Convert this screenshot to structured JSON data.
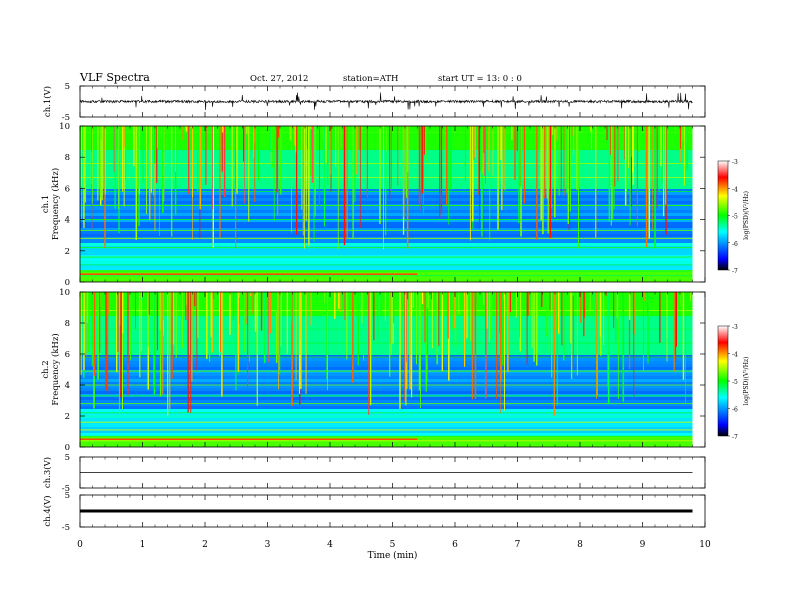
{
  "header": {
    "title": "VLF  Spectra",
    "date": "Oct. 27, 2012",
    "station": "station=ATH",
    "start": "start  UT  =    13: 0  : 0"
  },
  "chart_data": [
    {
      "type": "line",
      "panel": "ch1-waveform",
      "ylabel": "ch.1(V)",
      "yticks": [
        "5",
        "-5"
      ],
      "ylim": [
        -5,
        5
      ],
      "xlim": [
        0,
        10
      ],
      "baseline": 0,
      "data_end_min": 9.8
    },
    {
      "type": "heatmap",
      "panel": "ch1-spectrogram",
      "ylabel_line1": "ch.1",
      "ylabel_line2": "Frequency  (kHz)",
      "yticks": [
        "10",
        "8",
        "6",
        "4",
        "2",
        "0"
      ],
      "ylim": [
        0,
        10
      ],
      "xlim": [
        0,
        10
      ],
      "colorbar": {
        "label": "log(PSD)(V²/Hz)",
        "ticks": [
          "-3",
          "-4",
          "-5",
          "-6",
          "-7"
        ],
        "range": [
          -7,
          -3
        ]
      }
    },
    {
      "type": "heatmap",
      "panel": "ch2-spectrogram",
      "ylabel_line1": "ch.2",
      "ylabel_line2": "Frequency  (kHz)",
      "yticks": [
        "10",
        "8",
        "6",
        "4",
        "2",
        "0"
      ],
      "ylim": [
        0,
        10
      ],
      "xlim": [
        0,
        10
      ],
      "colorbar": {
        "label": "log(PSD)(V²/Hz)",
        "ticks": [
          "-3",
          "-4",
          "-5",
          "-6",
          "-7"
        ],
        "range": [
          -7,
          -3
        ]
      }
    },
    {
      "type": "line",
      "panel": "ch3-waveform",
      "ylabel": "ch.3(V)",
      "yticks": [
        "5",
        "-5"
      ],
      "ylim": [
        -5,
        5
      ],
      "xlim": [
        0,
        10
      ],
      "baseline": 0
    },
    {
      "type": "line",
      "panel": "ch4-waveform",
      "ylabel": "ch.4(V)",
      "yticks": [
        "5",
        "-5"
      ],
      "ylim": [
        -5,
        5
      ],
      "xlim": [
        0,
        10
      ],
      "baseline": 0
    }
  ],
  "xaxis": {
    "label": "Time  (min)",
    "ticks": [
      "0",
      "1",
      "2",
      "3",
      "4",
      "5",
      "6",
      "7",
      "8",
      "9",
      "10"
    ]
  },
  "colors": {
    "colormap": [
      "#000000",
      "#0000ff",
      "#00ffff",
      "#00ff00",
      "#ffff00",
      "#ff0000",
      "#ffffff"
    ]
  }
}
